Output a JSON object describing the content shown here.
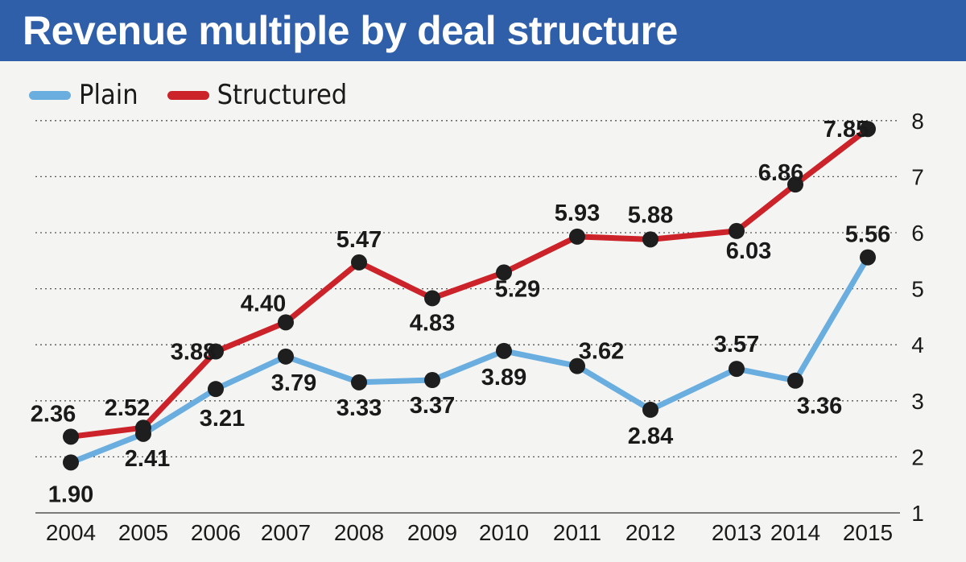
{
  "title": "Revenue multiple by deal structure",
  "colors": {
    "title_bg": "#2f5fa8",
    "plain": "#6aaee0",
    "structured": "#cc2229",
    "marker": "#1e1e1e"
  },
  "chart_data": {
    "type": "line",
    "title": "Revenue multiple by deal structure",
    "xlabel": "",
    "ylabel": "",
    "categories": [
      "2004",
      "2005",
      "2006",
      "2007",
      "2008",
      "2009",
      "2010",
      "2011",
      "2012",
      "2013",
      "2014",
      "2015"
    ],
    "yticks": [
      1,
      2,
      3,
      4,
      5,
      6,
      7,
      8
    ],
    "ylim": [
      1,
      8
    ],
    "y_axis_side": "right",
    "grid": "horizontal dotted",
    "legend_position": "top-left",
    "series": [
      {
        "name": "Plain",
        "color": "#6aaee0",
        "values": [
          1.9,
          2.41,
          3.21,
          3.79,
          3.33,
          3.37,
          3.89,
          3.62,
          2.84,
          3.57,
          3.36,
          5.56
        ],
        "labels": [
          "1.90",
          "2.41",
          "3.21",
          "3.79",
          "3.33",
          "3.37",
          "3.89",
          "3.62",
          "2.84",
          "3.57",
          "3.36",
          "5.56"
        ]
      },
      {
        "name": "Structured",
        "color": "#cc2229",
        "values": [
          2.36,
          2.52,
          3.88,
          4.4,
          5.47,
          4.83,
          5.29,
          5.93,
          5.88,
          6.03,
          6.86,
          7.85
        ],
        "labels": [
          "2.36",
          "2.52",
          "3.88",
          "4.40",
          "5.47",
          "4.83",
          "5.29",
          "5.93",
          "5.88",
          "6.03",
          "6.86",
          "7.85"
        ]
      }
    ]
  }
}
